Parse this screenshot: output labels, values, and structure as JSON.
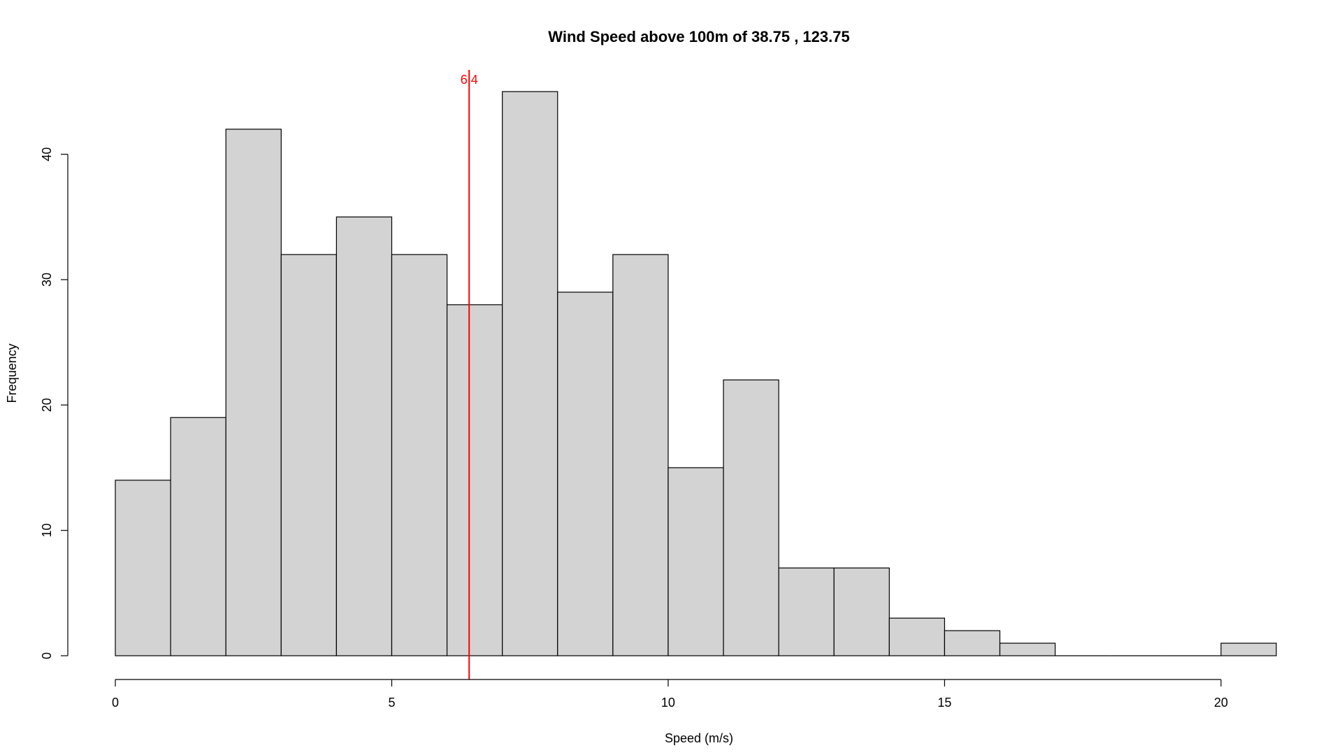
{
  "chart_data": {
    "type": "bar",
    "title": "Wind Speed above 100m of 38.75 , 123.75",
    "xlabel": "Speed (m/s)",
    "ylabel": "Frequency",
    "bin_width": 1,
    "bin_starts": [
      0,
      1,
      2,
      3,
      4,
      5,
      6,
      7,
      8,
      9,
      10,
      11,
      12,
      13,
      14,
      15,
      16,
      17,
      18,
      19,
      20
    ],
    "values": [
      14,
      19,
      42,
      32,
      35,
      32,
      28,
      45,
      29,
      32,
      15,
      22,
      7,
      7,
      3,
      2,
      1,
      0,
      0,
      0,
      1
    ],
    "xlim": [
      0,
      21
    ],
    "ylim": [
      0,
      45
    ],
    "x_ticks": [
      0,
      5,
      10,
      15,
      20
    ],
    "y_ticks": [
      0,
      10,
      20,
      30,
      40
    ],
    "grid": false,
    "reference_line": {
      "x": 6.4,
      "label": "6.4",
      "color": "#ff0000"
    },
    "bar_fill": "#d3d3d3",
    "bar_stroke": "#000000"
  }
}
